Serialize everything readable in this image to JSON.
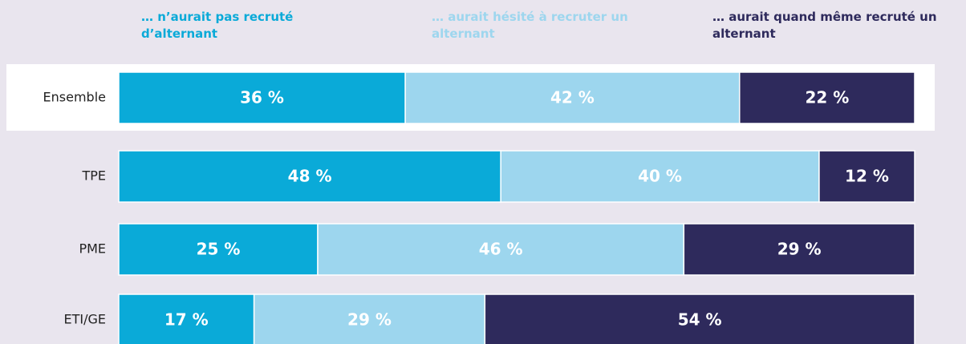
{
  "chart_data": {
    "type": "stacked-bar-horizontal",
    "categories": [
      "Ensemble",
      "TPE",
      "PME",
      "ETI/GE"
    ],
    "series": [
      {
        "name": "… n’aurait pas recruté d’alternant",
        "color": "#0aaad8",
        "values": [
          36,
          48,
          25,
          17
        ],
        "value_labels": [
          "36 %",
          "48 %",
          "25 %",
          "17 %"
        ]
      },
      {
        "name": "… aurait hésité à recruter un alternant",
        "color": "#9dd6ee",
        "values": [
          42,
          40,
          46,
          29
        ],
        "value_labels": [
          "42 %",
          "40 %",
          "46 %",
          "29 %"
        ]
      },
      {
        "name": "… aurait quand même recruté un alternant",
        "color": "#2e2a5c",
        "values": [
          22,
          12,
          29,
          54
        ],
        "value_labels": [
          "22 %",
          "12 %",
          "29 %",
          "54 %"
        ]
      }
    ],
    "xlim": [
      0,
      100
    ]
  }
}
